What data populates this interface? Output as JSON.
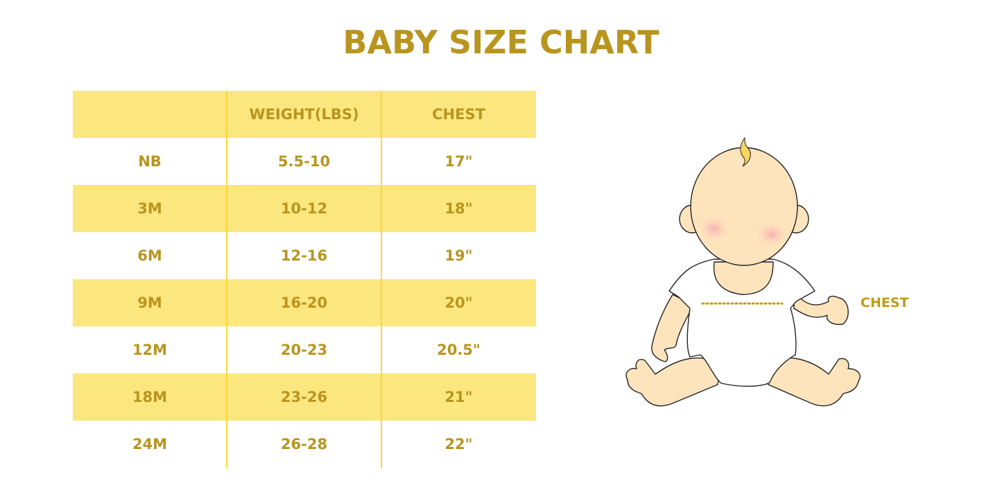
{
  "title": "BABY SIZE CHART",
  "table": {
    "headers": [
      "",
      "WEIGHT(LBS)",
      "CHEST"
    ],
    "rows": [
      [
        "NB",
        "5.5-10",
        "17\""
      ],
      [
        "3M",
        "10-12",
        "18\""
      ],
      [
        "6M",
        "12-16",
        "19\""
      ],
      [
        "9M",
        "16-20",
        "20\""
      ],
      [
        "12M",
        "20-23",
        "20.5\""
      ],
      [
        "18M",
        "23-26",
        "21\""
      ],
      [
        "24M",
        "26-28",
        "22\""
      ]
    ]
  },
  "illustration": {
    "label": "CHEST"
  },
  "colors": {
    "text": "#b8951f",
    "band": "#fce67e",
    "divider": "#fad73a",
    "skin": "#fde4bd"
  }
}
